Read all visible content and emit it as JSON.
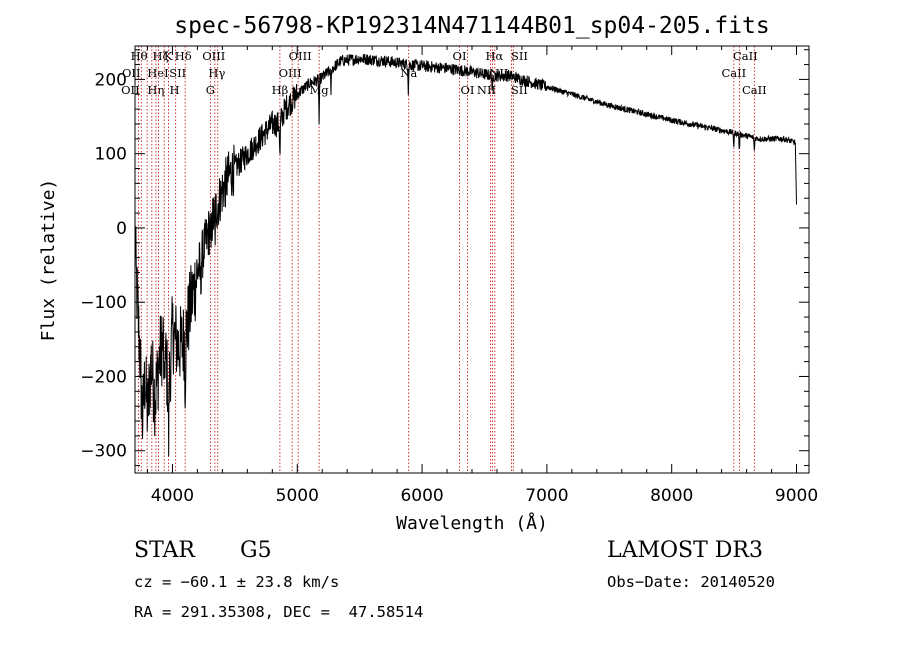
{
  "chart_data": {
    "type": "line",
    "title": "spec-56798-KP192314N471144B01_sp04-205.fits",
    "xlabel": "Wavelength (Å)",
    "ylabel": "Flux (relative)",
    "xlim": [
      3700,
      9100
    ],
    "ylim": [
      -330,
      245
    ],
    "xticks": [
      4000,
      5000,
      6000,
      7000,
      8000,
      9000
    ],
    "yticks": [
      -300,
      -200,
      -100,
      0,
      100,
      200
    ],
    "xtick_labels": [
      "4000",
      "5000",
      "6000",
      "7000",
      "8000",
      "9000"
    ],
    "ytick_labels": [
      "−300",
      "−200",
      "−100",
      "0",
      "100",
      "200"
    ],
    "spectrum_anchors": [
      [
        3700,
        0
      ],
      [
        3710,
        -70
      ],
      [
        3740,
        -170
      ],
      [
        3760,
        -260
      ],
      [
        3780,
        -200
      ],
      [
        3800,
        -250
      ],
      [
        3830,
        -180
      ],
      [
        3860,
        -230
      ],
      [
        3900,
        -170
      ],
      [
        3930,
        -150
      ],
      [
        3970,
        -220
      ],
      [
        4000,
        -140
      ],
      [
        4050,
        -160
      ],
      [
        4100,
        -150
      ],
      [
        4150,
        -100
      ],
      [
        4200,
        -60
      ],
      [
        4250,
        -30
      ],
      [
        4300,
        0
      ],
      [
        4340,
        20
      ],
      [
        4400,
        50
      ],
      [
        4450,
        70
      ],
      [
        4500,
        80
      ],
      [
        4600,
        100
      ],
      [
        4700,
        120
      ],
      [
        4800,
        140
      ],
      [
        4860,
        140
      ],
      [
        4900,
        160
      ],
      [
        5000,
        180
      ],
      [
        5100,
        195
      ],
      [
        5180,
        200
      ],
      [
        5250,
        210
      ],
      [
        5350,
        225
      ],
      [
        5500,
        228
      ],
      [
        5700,
        225
      ],
      [
        5890,
        220
      ],
      [
        6000,
        218
      ],
      [
        6200,
        215
      ],
      [
        6400,
        210
      ],
      [
        6563,
        205
      ],
      [
        6700,
        205
      ],
      [
        7000,
        190
      ],
      [
        7500,
        165
      ],
      [
        8000,
        145
      ],
      [
        8500,
        128
      ],
      [
        8700,
        120
      ],
      [
        8900,
        120
      ],
      [
        8990,
        115
      ],
      [
        9000,
        30
      ]
    ],
    "absorption_dips": [
      [
        3934,
        -90
      ],
      [
        3969,
        -80
      ],
      [
        4102,
        -60
      ],
      [
        4226,
        -40
      ],
      [
        4308,
        -50
      ],
      [
        4340,
        -40
      ],
      [
        4861,
        -55
      ],
      [
        5175,
        -60
      ],
      [
        5270,
        -30
      ],
      [
        5890,
        -35
      ],
      [
        6563,
        -30
      ],
      [
        8498,
        -20
      ],
      [
        8542,
        -25
      ],
      [
        8662,
        -20
      ]
    ],
    "lines": [
      {
        "wl": 3727,
        "label": "OII",
        "row": 3,
        "dx": -8
      },
      {
        "wl": 3750,
        "label": "OII",
        "row": 2,
        "dx": -10
      },
      {
        "wl": 3797,
        "label": "Hθ",
        "row": 1,
        "dx": -8
      },
      {
        "wl": 3835,
        "label": "Hη",
        "row": 3,
        "dx": 4
      },
      {
        "wl": 3868,
        "label": "HeI",
        "row": 2,
        "dx": 2
      },
      {
        "wl": 3889,
        "label": "Hζ",
        "row": 1,
        "dx": 2
      },
      {
        "wl": 3934,
        "label": "K",
        "row": 1,
        "dx": 4
      },
      {
        "wl": 3969,
        "label": "H",
        "row": 3,
        "dx": 6
      },
      {
        "wl": 4026,
        "label": "SII",
        "row": 2,
        "dx": 2
      },
      {
        "wl": 4102,
        "label": "Hδ",
        "row": 1,
        "dx": -2
      },
      {
        "wl": 4304,
        "label": "G",
        "row": 3,
        "dx": 0
      },
      {
        "wl": 4340,
        "label": "Hγ",
        "row": 2,
        "dx": 2
      },
      {
        "wl": 4363,
        "label": "OIII",
        "row": 1,
        "dx": -4
      },
      {
        "wl": 4861,
        "label": "Hβ",
        "row": 3,
        "dx": 0
      },
      {
        "wl": 4959,
        "label": "OIII",
        "row": 2,
        "dx": -2
      },
      {
        "wl": 5007,
        "label": "OIII",
        "row": 1,
        "dx": 2
      },
      {
        "wl": 5175,
        "label": "Mg",
        "row": 3,
        "dx": 0
      },
      {
        "wl": 5893,
        "label": "Na",
        "row": 2,
        "dx": 0
      },
      {
        "wl": 6300,
        "label": "OI",
        "row": 1,
        "dx": 0
      },
      {
        "wl": 6364,
        "label": "OI",
        "row": 3,
        "dx": 0
      },
      {
        "wl": 6548,
        "label": "NII",
        "row": 3,
        "dx": -4
      },
      {
        "wl": 6563,
        "label": "Hα",
        "row": 1,
        "dx": 2
      },
      {
        "wl": 6583,
        "label": "NII",
        "row": 2,
        "dx": 4
      },
      {
        "wl": 6716,
        "label": "SII",
        "row": 1,
        "dx": 8
      },
      {
        "wl": 6731,
        "label": "SII",
        "row": 3,
        "dx": 6
      },
      {
        "wl": 8498,
        "label": "CaII",
        "row": 2,
        "dx": 0
      },
      {
        "wl": 8542,
        "label": "CaII",
        "row": 1,
        "dx": 6
      },
      {
        "wl": 8662,
        "label": "CaII",
        "row": 3,
        "dx": 0
      }
    ]
  },
  "info": {
    "object_type": "STAR",
    "subclass": "G5",
    "survey": "LAMOST DR3",
    "redshift": "cz = −60.1 ± 23.8 km/s",
    "obs_date": "Obs−Date: 20140520",
    "coords": "RA = 291.35308, DEC =  47.58514"
  },
  "colors": {
    "line_marker": "#c00000",
    "spectrum": "#000000"
  }
}
